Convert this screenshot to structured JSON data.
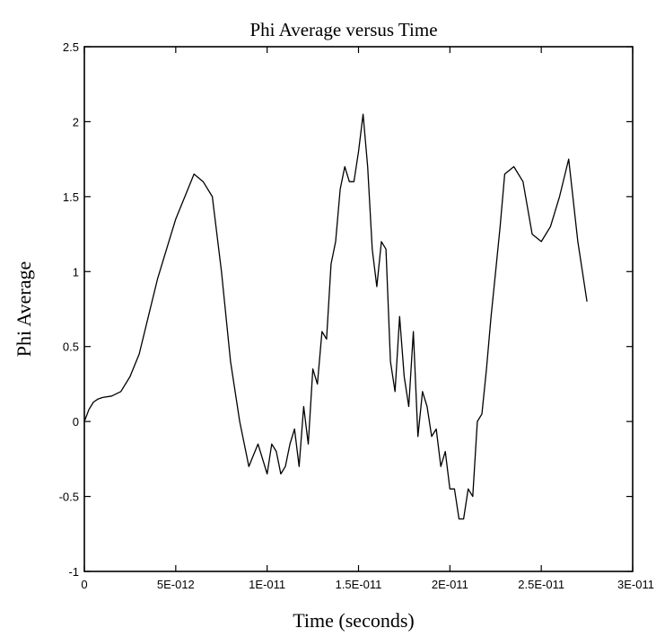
{
  "chart_data": {
    "type": "line",
    "title": "Phi Average versus Time",
    "xlabel": "Time (seconds)",
    "ylabel": "Phi Average",
    "xlim": [
      0,
      3e-11
    ],
    "ylim": [
      -1,
      2.5
    ],
    "x_ticks": [
      0,
      5e-12,
      1e-11,
      1.5e-11,
      2e-11,
      2.5e-11,
      3e-11
    ],
    "x_tick_labels": [
      "0",
      "5E-012",
      "1E-011",
      "1.5E-011",
      "2E-011",
      "2.5E-011",
      "3E-011"
    ],
    "y_ticks": [
      -1,
      -0.5,
      0,
      0.5,
      1,
      1.5,
      2,
      2.5
    ],
    "y_tick_labels": [
      "-1",
      "-0.5",
      "0",
      "0.5",
      "1",
      "1.5",
      "2",
      "2.5"
    ],
    "grid": false,
    "legend": "none",
    "colors": {
      "line": "#000000",
      "axis": "#000000"
    },
    "series": [
      {
        "x": [
          0,
          2.5e-13,
          5e-13,
          7.5e-13,
          1e-12,
          1.5e-12,
          2e-12,
          2.5e-12,
          3e-12,
          3.5e-12,
          4e-12,
          4.5e-12,
          5e-12,
          5.5e-12,
          6e-12,
          6.5e-12,
          7e-12,
          7.5e-12,
          8e-12,
          8.5e-12,
          9e-12,
          9.5e-12,
          1e-11,
          1.025e-11,
          1.05e-11,
          1.075e-11,
          1.1e-11,
          1.125e-11,
          1.15e-11,
          1.175e-11,
          1.2e-11,
          1.225e-11,
          1.25e-11,
          1.275e-11,
          1.3e-11,
          1.325e-11,
          1.35e-11,
          1.375e-11,
          1.4e-11,
          1.425e-11,
          1.45e-11,
          1.475e-11,
          1.5e-11,
          1.525e-11,
          1.55e-11,
          1.575e-11,
          1.6e-11,
          1.625e-11,
          1.65e-11,
          1.675e-11,
          1.7e-11,
          1.725e-11,
          1.75e-11,
          1.775e-11,
          1.8e-11,
          1.825e-11,
          1.85e-11,
          1.875e-11,
          1.9e-11,
          1.925e-11,
          1.95e-11,
          1.975e-11,
          2e-11,
          2.025e-11,
          2.05e-11,
          2.075e-11,
          2.1e-11,
          2.125e-11,
          2.15e-11,
          2.175e-11,
          2.2e-11,
          2.225e-11,
          2.25e-11,
          2.275e-11,
          2.3e-11,
          2.35e-11,
          2.4e-11,
          2.45e-11,
          2.5e-11,
          2.55e-11,
          2.6e-11,
          2.65e-11,
          2.7e-11,
          2.75e-11
        ],
        "y": [
          0,
          0.08,
          0.13,
          0.15,
          0.16,
          0.17,
          0.2,
          0.3,
          0.45,
          0.7,
          0.95,
          1.15,
          1.35,
          1.5,
          1.65,
          1.6,
          1.5,
          1.0,
          0.4,
          0.0,
          -0.3,
          -0.15,
          -0.35,
          -0.15,
          -0.2,
          -0.35,
          -0.3,
          -0.15,
          -0.05,
          -0.3,
          0.1,
          -0.15,
          0.35,
          0.25,
          0.6,
          0.55,
          1.05,
          1.2,
          1.55,
          1.7,
          1.6,
          1.6,
          1.8,
          2.05,
          1.7,
          1.15,
          0.9,
          1.2,
          1.15,
          0.4,
          0.2,
          0.7,
          0.3,
          0.1,
          0.6,
          -0.1,
          0.2,
          0.1,
          -0.1,
          -0.05,
          -0.3,
          -0.2,
          -0.45,
          -0.45,
          -0.65,
          -0.65,
          -0.45,
          -0.5,
          0.0,
          0.05,
          0.35,
          0.7,
          1.0,
          1.3,
          1.65,
          1.7,
          1.6,
          1.25,
          1.2,
          1.3,
          1.5,
          1.75,
          1.2,
          0.8
        ]
      }
    ]
  }
}
